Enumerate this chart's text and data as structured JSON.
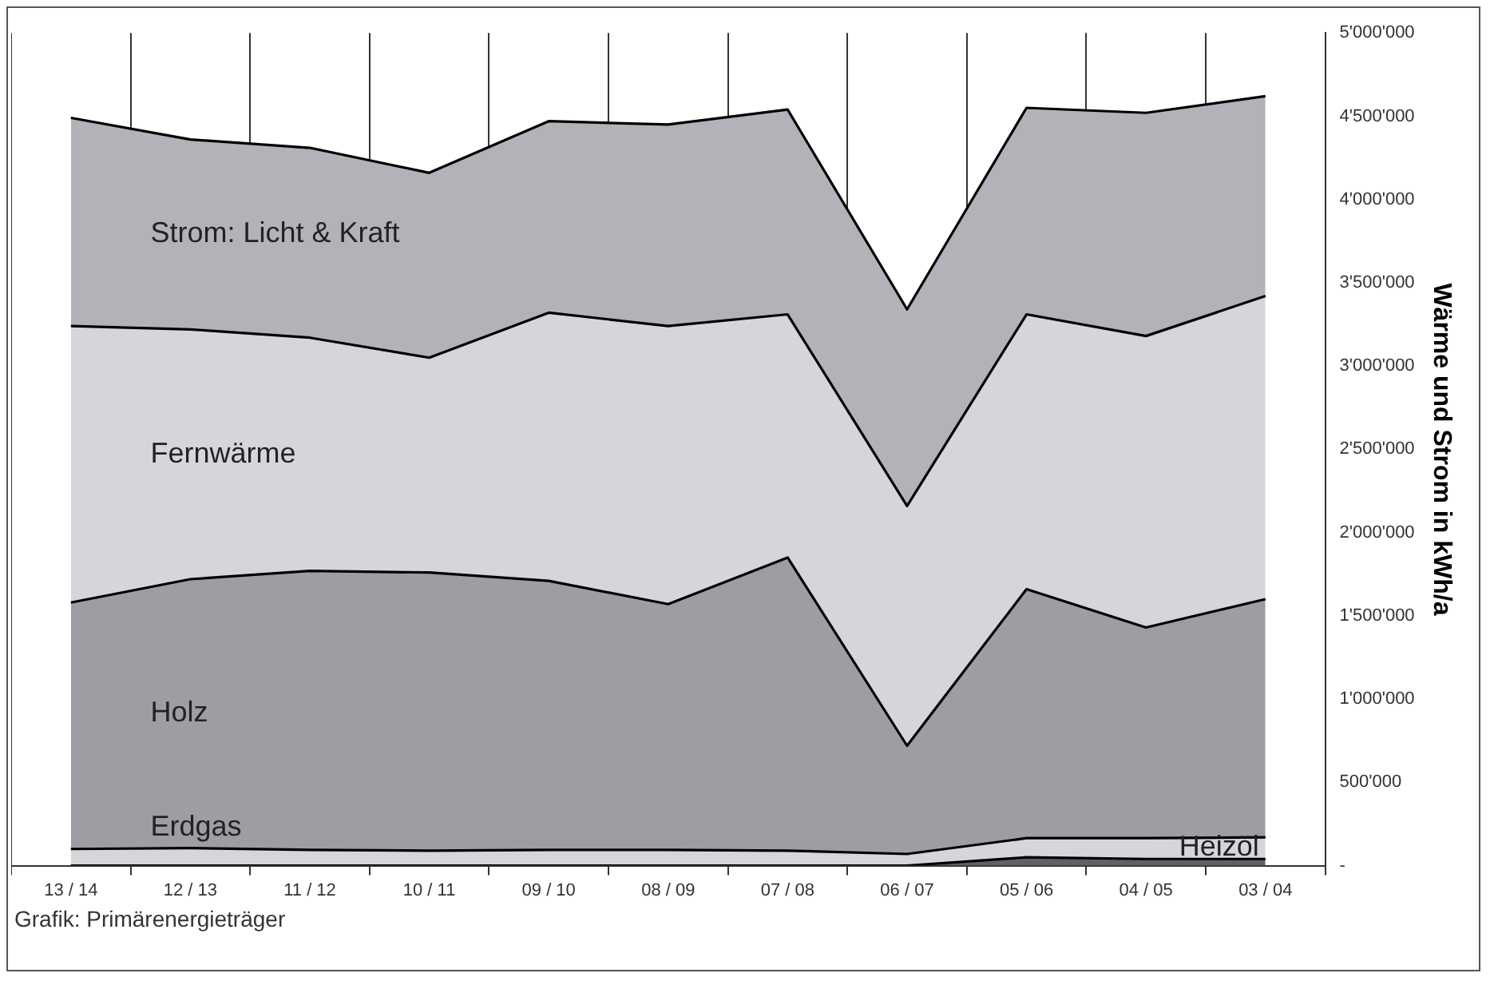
{
  "chart_data": {
    "type": "area",
    "stacked": true,
    "ylabel": "Wärme und Strom in kWh/a",
    "grid": "x",
    "legend": false,
    "categories": [
      "13 / 14",
      "12 / 13",
      "11 / 12",
      "10 / 11",
      "09 / 10",
      "08 / 09",
      "07 / 08",
      "06 / 07",
      "05 / 06",
      "04 / 05",
      "03 / 04"
    ],
    "ylim": [
      0,
      5000000
    ],
    "yticks": [
      {
        "value": 0,
        "label": "-"
      },
      {
        "value": 500000,
        "label": "500'000"
      },
      {
        "value": 1000000,
        "label": "1'000'000"
      },
      {
        "value": 1500000,
        "label": "1'500'000"
      },
      {
        "value": 2000000,
        "label": "2'000'000"
      },
      {
        "value": 2500000,
        "label": "2'500'000"
      },
      {
        "value": 3000000,
        "label": "3'000'000"
      },
      {
        "value": 3500000,
        "label": "3'500'000"
      },
      {
        "value": 4000000,
        "label": "4'000'000"
      },
      {
        "value": 4500000,
        "label": "4'500'000"
      },
      {
        "value": 5000000,
        "label": "5'000'000"
      }
    ],
    "series": [
      {
        "name": "Heizöl",
        "color": "#5f6166",
        "values": [
          0,
          0,
          0,
          0,
          0,
          0,
          0,
          0,
          50000,
          40000,
          40000
        ]
      },
      {
        "name": "Erdgas",
        "color": "#d5d6d9",
        "values": [
          100000,
          105000,
          95000,
          90000,
          95000,
          95000,
          90000,
          70000,
          115000,
          125000,
          130000
        ]
      },
      {
        "name": "Holz",
        "color": "#9c9ea3",
        "values": [
          1480000,
          1615000,
          1675000,
          1670000,
          1615000,
          1475000,
          1760000,
          650000,
          1495000,
          1265000,
          1430000
        ]
      },
      {
        "name": "Fernwärme",
        "color": "#d5d6d9",
        "values": [
          1660000,
          1500000,
          1400000,
          1290000,
          1610000,
          1670000,
          1460000,
          1440000,
          1650000,
          1750000,
          1820000
        ]
      },
      {
        "name": "Strom: Licht & Kraft",
        "color": "#b1b3b8",
        "values": [
          1250000,
          1140000,
          1140000,
          1110000,
          1150000,
          1210000,
          1230000,
          1180000,
          1240000,
          1340000,
          1200000
        ]
      }
    ],
    "annotations": [
      "Grafik: Primärenergieträger"
    ]
  }
}
